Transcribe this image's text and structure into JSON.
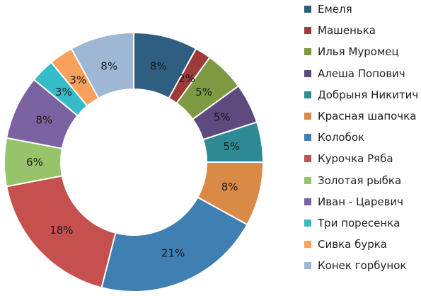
{
  "chart_data": {
    "type": "pie",
    "donut": true,
    "legend_position": "right",
    "series": [
      {
        "name": "Емеля",
        "value": 8,
        "label": "8%",
        "color": "#2e5f80"
      },
      {
        "name": "Машенька",
        "value": 2,
        "label": "2%",
        "color": "#9e3a3a"
      },
      {
        "name": "Илья Муромец",
        "value": 5,
        "label": "5%",
        "color": "#7d9a43"
      },
      {
        "name": "Алеша Попович",
        "value": 5,
        "label": "5%",
        "color": "#5e4a7e"
      },
      {
        "name": "Добрыня Никитич",
        "value": 5,
        "label": "5%",
        "color": "#2e8b95"
      },
      {
        "name": "Красная шапочка",
        "value": 8,
        "label": "8%",
        "color": "#d98a47"
      },
      {
        "name": "Колобок",
        "value": 21,
        "label": "21%",
        "color": "#3f7fb1"
      },
      {
        "name": "Курочка Ряба",
        "value": 18,
        "label": "18%",
        "color": "#c5504e"
      },
      {
        "name": "Золотая рыбка",
        "value": 6,
        "label": "6%",
        "color": "#97c36a"
      },
      {
        "name": "Иван - Царевич",
        "value": 8,
        "label": "8%",
        "color": "#7b62a0"
      },
      {
        "name": "Три поресенка",
        "value": 3,
        "label": "3%",
        "color": "#35bcc6"
      },
      {
        "name": "Сивка бурка",
        "value": 3,
        "label": "3%",
        "color": "#f9a15c"
      },
      {
        "name": "Конек горбунок",
        "value": 8,
        "label": "8%",
        "color": "#9db7d4"
      }
    ]
  }
}
